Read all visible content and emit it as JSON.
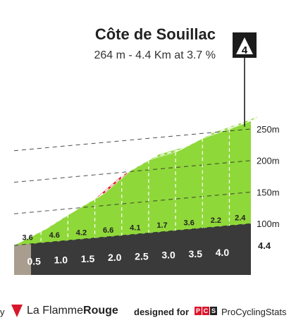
{
  "header": {
    "title": "Côte de Souillac",
    "subtitle": "264 m - 4.4 Km at 3.7 %",
    "category": "4"
  },
  "footer": {
    "cut_text": "y",
    "brand_plain": "La Flamme",
    "brand_bold": "Rouge",
    "designed_label": "designed for",
    "pcs_badge_letters": [
      "P",
      "C",
      "S"
    ],
    "pcs_label": "ProCyclingStats"
  },
  "colors": {
    "easy": "#8fd83a",
    "moderate": "#1f5a9e",
    "hard": "#e0202b",
    "base_dark": "#3a3a3a",
    "base_start": "#a89d8e"
  },
  "chart_data": {
    "type": "area",
    "title": "Côte de Souillac",
    "y_ticks": [
      100,
      150,
      200,
      250
    ],
    "y_tick_labels": [
      "100m",
      "150m",
      "200m",
      "250m"
    ],
    "x_end_label": "4.4",
    "distance_labels": [
      "0.5",
      "1.0",
      "1.5",
      "2.0",
      "2.5",
      "3.0",
      "3.5",
      "4.0"
    ],
    "segments": [
      {
        "from_km": 0.0,
        "to_km": 0.5,
        "gradient": 3.6,
        "difficulty": "easy"
      },
      {
        "from_km": 0.5,
        "to_km": 1.0,
        "gradient": 4.6,
        "difficulty": "moderate"
      },
      {
        "from_km": 1.0,
        "to_km": 1.5,
        "gradient": 4.2,
        "difficulty": "moderate"
      },
      {
        "from_km": 1.5,
        "to_km": 2.0,
        "gradient": 6.6,
        "difficulty": "hard"
      },
      {
        "from_km": 2.0,
        "to_km": 2.5,
        "gradient": 4.1,
        "difficulty": "moderate"
      },
      {
        "from_km": 2.5,
        "to_km": 3.0,
        "gradient": 1.7,
        "difficulty": "easy"
      },
      {
        "from_km": 3.0,
        "to_km": 3.5,
        "gradient": 3.6,
        "difficulty": "easy"
      },
      {
        "from_km": 3.5,
        "to_km": 4.0,
        "gradient": 2.2,
        "difficulty": "easy"
      },
      {
        "from_km": 4.0,
        "to_km": 4.4,
        "gradient": 2.4,
        "difficulty": "easy"
      }
    ],
    "gradient_labels": [
      "3.6",
      "4.6",
      "4.2",
      "6.6",
      "4.1",
      "1.7",
      "3.6",
      "2.2",
      "2.4"
    ],
    "elevation_start": 100,
    "elevation_summit": 264
  }
}
